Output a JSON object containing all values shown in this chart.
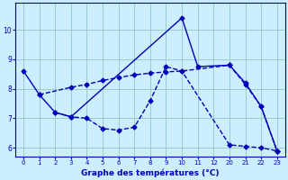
{
  "title": "Graphe des températures (°C)",
  "background_color": "#cceeff",
  "line_color": "#0000bb",
  "grid_color": "#99cccc",
  "xlabel_bg": "#ffffff",
  "xlabels": [
    "0",
    "1",
    "2",
    "3",
    "4",
    "5",
    "6",
    "7",
    "8",
    "9",
    "10",
    "11",
    "12",
    "20",
    "21",
    "22",
    "23"
  ],
  "x_positions": [
    0,
    1,
    2,
    3,
    4,
    5,
    6,
    7,
    8,
    9,
    10,
    11,
    12,
    13,
    14,
    15,
    16
  ],
  "ylim": [
    5.7,
    10.9
  ],
  "yticks": [
    6,
    7,
    8,
    9,
    10
  ],
  "line1_x_idx": [
    0,
    1,
    2,
    3,
    10,
    11,
    13,
    14,
    15,
    16
  ],
  "line1_y": [
    8.6,
    7.8,
    7.2,
    7.05,
    10.4,
    8.75,
    8.8,
    8.2,
    7.4,
    5.9
  ],
  "line2_x_idx": [
    1,
    3,
    4,
    5,
    6,
    7,
    8,
    9,
    10,
    13,
    14,
    15,
    16
  ],
  "line2_y": [
    7.8,
    8.05,
    8.15,
    8.28,
    8.38,
    8.47,
    8.53,
    8.57,
    8.6,
    8.8,
    8.15,
    7.4,
    5.9
  ],
  "line3_x_idx": [
    2,
    3,
    4,
    5,
    6,
    7,
    8,
    9,
    10,
    13,
    14,
    15,
    16
  ],
  "line3_y": [
    7.2,
    7.05,
    7.0,
    6.65,
    6.6,
    6.7,
    7.6,
    8.75,
    8.6,
    6.1,
    6.05,
    6.0,
    5.9
  ]
}
